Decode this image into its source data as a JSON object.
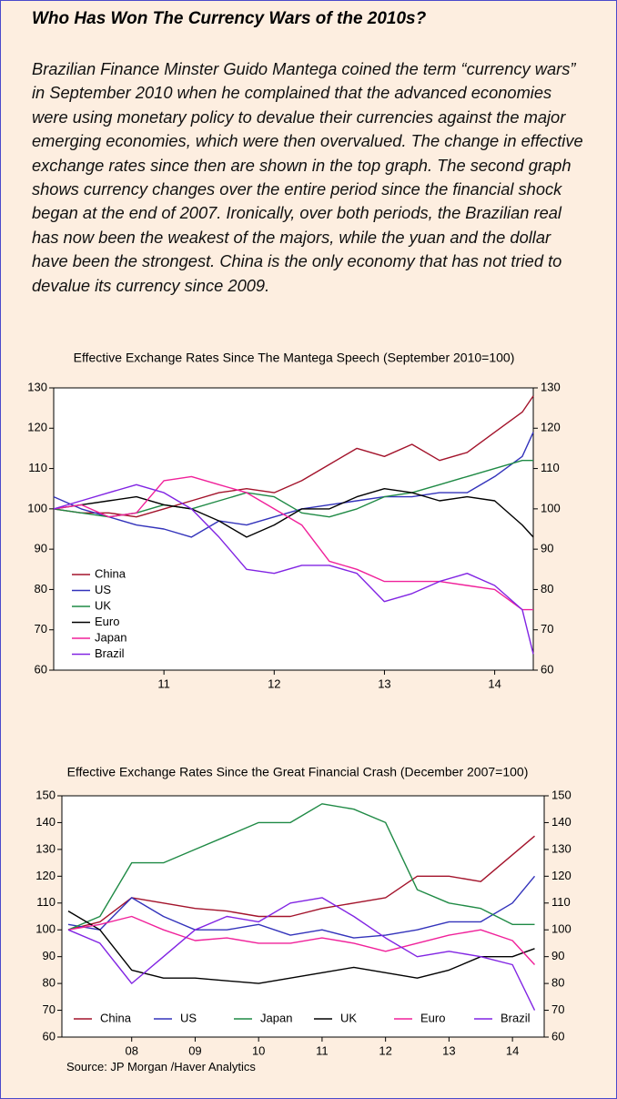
{
  "document": {
    "title": "Who Has Won The Currency Wars of the 2010s?",
    "paragraph": "Brazilian Finance Minster Guido Mantega coined the  term “currency wars” in September 2010 when he complained that the advanced economies were using monetary policy to devalue their currencies against the major emerging economies, which were then overvalued. The change in effective exchange rates since then are shown in the top graph. The second graph shows currency changes over the entire period since the financial shock began at the end of 2007. Ironically, over both periods, the Brazilian real has now been the weakest of the majors, while the yuan and the dollar have been the strongest. China is the only economy that has not tried to devalue its currency since 2009.",
    "source": "Source:  JP Morgan /Haver Analytics"
  },
  "chart_data": [
    {
      "type": "line",
      "title": "Effective Exchange Rates Since The Mantega Speech (September 2010=100)",
      "x": [
        10.5,
        10.75,
        11,
        11.25,
        11.5,
        11.75,
        12,
        12.25,
        12.5,
        12.75,
        13,
        13.25,
        13.5,
        13.75,
        14,
        14.25,
        14.5,
        14.75,
        14.85
      ],
      "xlim": [
        10.5,
        14.85
      ],
      "xticks": [
        {
          "value": 11.5,
          "label": "11"
        },
        {
          "value": 12.5,
          "label": "12"
        },
        {
          "value": 13.5,
          "label": "13"
        },
        {
          "value": 14.5,
          "label": "14"
        }
      ],
      "ylim": [
        60,
        130
      ],
      "yticks": [
        60,
        70,
        80,
        90,
        100,
        110,
        120,
        130
      ],
      "legend": "lower left",
      "series": [
        {
          "name": "China",
          "color": "#a3132b",
          "values": [
            100,
            99,
            99,
            98,
            100,
            102,
            104,
            105,
            104,
            107,
            111,
            115,
            113,
            116,
            112,
            114,
            119,
            124,
            128
          ]
        },
        {
          "name": "US",
          "color": "#3333bb",
          "values": [
            103,
            100,
            98,
            96,
            95,
            93,
            97,
            96,
            98,
            100,
            101,
            102,
            103,
            103,
            104,
            104,
            108,
            113,
            119
          ]
        },
        {
          "name": "UK",
          "color": "#1f8a45",
          "values": [
            100,
            99,
            98,
            99,
            101,
            100,
            102,
            104,
            103,
            99,
            98,
            100,
            103,
            104,
            106,
            108,
            110,
            112,
            112
          ]
        },
        {
          "name": "Euro",
          "color": "#000000",
          "values": [
            100,
            101,
            102,
            103,
            101,
            100,
            97,
            93,
            96,
            100,
            100,
            103,
            105,
            104,
            102,
            103,
            102,
            96,
            93
          ]
        },
        {
          "name": "Japan",
          "color": "#f0219a",
          "values": [
            100,
            101,
            98,
            99,
            107,
            108,
            106,
            104,
            100,
            96,
            87,
            85,
            82,
            82,
            82,
            81,
            80,
            75,
            75
          ]
        },
        {
          "name": "Brazil",
          "color": "#8124e3",
          "values": [
            100,
            102,
            104,
            106,
            104,
            100,
            93,
            85,
            84,
            86,
            86,
            84,
            77,
            79,
            82,
            84,
            81,
            75,
            64
          ]
        }
      ]
    },
    {
      "type": "line",
      "title": "Effective Exchange Rates Since the Great Financial Crash (December 2007=100)",
      "x": [
        7.5,
        8,
        8.5,
        9,
        9.5,
        10,
        10.5,
        11,
        11.5,
        12,
        12.5,
        13,
        13.5,
        14,
        14.5,
        14.85
      ],
      "xlim": [
        7.4,
        15.0
      ],
      "xticks": [
        {
          "value": 8.5,
          "label": "08"
        },
        {
          "value": 9.5,
          "label": "09"
        },
        {
          "value": 10.5,
          "label": "10"
        },
        {
          "value": 11.5,
          "label": "11"
        },
        {
          "value": 12.5,
          "label": "12"
        },
        {
          "value": 13.5,
          "label": "13"
        },
        {
          "value": 14.5,
          "label": "14"
        }
      ],
      "ylim": [
        60,
        150
      ],
      "yticks": [
        60,
        70,
        80,
        90,
        100,
        110,
        120,
        130,
        140,
        150
      ],
      "legend": "bottom",
      "series": [
        {
          "name": "China",
          "color": "#a3132b",
          "values": [
            100,
            103,
            112,
            110,
            108,
            107,
            105,
            105,
            108,
            110,
            112,
            120,
            120,
            118,
            128,
            135
          ]
        },
        {
          "name": "US",
          "color": "#3333bb",
          "values": [
            102,
            100,
            112,
            105,
            100,
            100,
            102,
            98,
            100,
            97,
            98,
            100,
            103,
            103,
            110,
            120
          ]
        },
        {
          "name": "Japan",
          "color": "#1f8a45",
          "values": [
            100,
            105,
            125,
            125,
            130,
            135,
            140,
            140,
            147,
            145,
            140,
            115,
            110,
            108,
            102,
            102
          ]
        },
        {
          "name": "UK",
          "color": "#000000",
          "values": [
            107,
            100,
            85,
            82,
            82,
            81,
            80,
            82,
            84,
            86,
            84,
            82,
            85,
            90,
            90,
            93
          ]
        },
        {
          "name": "Euro",
          "color": "#f0219a",
          "values": [
            100,
            102,
            105,
            100,
            96,
            97,
            95,
            95,
            97,
            95,
            92,
            95,
            98,
            100,
            96,
            87
          ]
        },
        {
          "name": "Brazil",
          "color": "#8124e3",
          "values": [
            100,
            95,
            80,
            90,
            100,
            105,
            103,
            110,
            112,
            105,
            97,
            90,
            92,
            90,
            87,
            70
          ]
        }
      ]
    }
  ]
}
